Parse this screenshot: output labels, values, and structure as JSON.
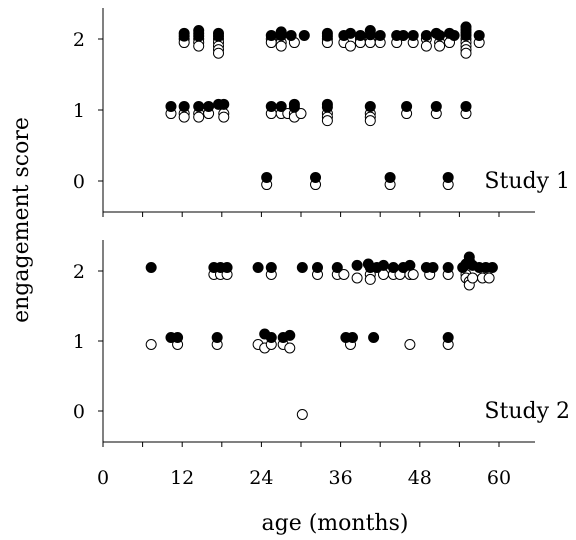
{
  "chart_data": {
    "type": "scatter",
    "xlabel": "age (months)",
    "ylabel": "engagement score",
    "xlim": [
      0,
      66
    ],
    "x_ticks": [
      0,
      12,
      24,
      36,
      48,
      60
    ],
    "x_minor_ticks": [
      6,
      18,
      30,
      42,
      54
    ],
    "y_ticks": [
      0,
      1,
      2
    ],
    "ylim": [
      -0.45,
      2.45
    ],
    "grid": false,
    "colors": {
      "open": "#ffffff",
      "filled": "#000000",
      "stroke": "#000000"
    },
    "panels": [
      {
        "label": "Study 1",
        "series": [
          {
            "marker": "open",
            "values": [
              [
                12.3,
                2
              ],
              [
                12.3,
                1.95
              ],
              [
                14.5,
                2
              ],
              [
                14.5,
                1.95
              ],
              [
                14.5,
                1.9
              ],
              [
                17.5,
                2
              ],
              [
                17.5,
                1.95
              ],
              [
                17.5,
                1.9
              ],
              [
                17.5,
                1.85
              ],
              [
                17.5,
                1.8
              ],
              [
                25.5,
                2
              ],
              [
                25.5,
                1.95
              ],
              [
                27,
                1.95
              ],
              [
                27,
                1.9
              ],
              [
                29,
                1.95
              ],
              [
                34,
                2
              ],
              [
                34,
                1.95
              ],
              [
                36.5,
                1.95
              ],
              [
                37.5,
                1.9
              ],
              [
                39,
                2
              ],
              [
                39,
                1.95
              ],
              [
                40.5,
                2
              ],
              [
                40.5,
                1.95
              ],
              [
                42,
                1.95
              ],
              [
                44.5,
                1.95
              ],
              [
                47,
                1.95
              ],
              [
                49,
                2
              ],
              [
                49,
                1.9
              ],
              [
                51,
                1.95
              ],
              [
                51,
                1.9
              ],
              [
                52.5,
                1.95
              ],
              [
                55,
                2
              ],
              [
                55,
                1.95
              ],
              [
                55,
                1.9
              ],
              [
                55,
                1.85
              ],
              [
                55,
                1.8
              ],
              [
                57,
                1.95
              ],
              [
                10.3,
                0.95
              ],
              [
                12.3,
                0.95
              ],
              [
                12.3,
                0.9
              ],
              [
                14.5,
                0.95
              ],
              [
                14.5,
                0.9
              ],
              [
                16,
                0.95
              ],
              [
                18.3,
                0.95
              ],
              [
                18.3,
                0.9
              ],
              [
                25.5,
                0.95
              ],
              [
                27,
                0.95
              ],
              [
                28,
                0.95
              ],
              [
                29,
                0.95
              ],
              [
                29,
                0.9
              ],
              [
                30,
                0.95
              ],
              [
                34,
                0.95
              ],
              [
                34,
                0.9
              ],
              [
                34,
                0.85
              ],
              [
                40.5,
                0.95
              ],
              [
                40.5,
                0.9
              ],
              [
                40.5,
                0.85
              ],
              [
                46,
                0.95
              ],
              [
                50.5,
                0.95
              ],
              [
                55,
                0.95
              ],
              [
                24.8,
                -0.05
              ],
              [
                32.2,
                -0.05
              ],
              [
                43.5,
                -0.05
              ],
              [
                52.3,
                -0.05
              ]
            ]
          },
          {
            "marker": "filled",
            "values": [
              [
                12.3,
                2.08
              ],
              [
                12.3,
                2.04
              ],
              [
                14.5,
                2.12
              ],
              [
                14.5,
                2.08
              ],
              [
                14.5,
                2.04
              ],
              [
                17.5,
                2.08
              ],
              [
                17.5,
                2.04
              ],
              [
                25.5,
                2.05
              ],
              [
                27,
                2.1
              ],
              [
                27,
                2.05
              ],
              [
                28.5,
                2.05
              ],
              [
                30.5,
                2.05
              ],
              [
                34,
                2.08
              ],
              [
                34,
                2.04
              ],
              [
                36.5,
                2.05
              ],
              [
                37.5,
                2.08
              ],
              [
                39,
                2.05
              ],
              [
                40.5,
                2.12
              ],
              [
                40.5,
                2.06
              ],
              [
                42,
                2.05
              ],
              [
                44.5,
                2.05
              ],
              [
                45.5,
                2.05
              ],
              [
                47,
                2.05
              ],
              [
                49,
                2.05
              ],
              [
                50.5,
                2.08
              ],
              [
                51,
                2.05
              ],
              [
                52.5,
                2.08
              ],
              [
                53.2,
                2.05
              ],
              [
                55,
                2.17
              ],
              [
                55,
                2.13
              ],
              [
                55,
                2.09
              ],
              [
                55,
                2.05
              ],
              [
                57,
                2.05
              ],
              [
                10.3,
                1.05
              ],
              [
                12.3,
                1.05
              ],
              [
                14.5,
                1.05
              ],
              [
                16,
                1.05
              ],
              [
                17.5,
                1.08
              ],
              [
                18.3,
                1.08
              ],
              [
                25.5,
                1.05
              ],
              [
                27,
                1.05
              ],
              [
                29,
                1.08
              ],
              [
                29,
                1.04
              ],
              [
                34,
                1.08
              ],
              [
                34,
                1.04
              ],
              [
                40.5,
                1.05
              ],
              [
                46,
                1.05
              ],
              [
                50.5,
                1.05
              ],
              [
                55,
                1.05
              ],
              [
                24.8,
                0.05
              ],
              [
                32.2,
                0.05
              ],
              [
                43.5,
                0.05
              ],
              [
                52.3,
                0.05
              ]
            ]
          }
        ]
      },
      {
        "label": "Study 2",
        "series": [
          {
            "marker": "open",
            "values": [
              [
                16.8,
                1.95
              ],
              [
                17.8,
                1.95
              ],
              [
                18.8,
                1.95
              ],
              [
                25.5,
                1.95
              ],
              [
                32.5,
                1.95
              ],
              [
                35.5,
                1.95
              ],
              [
                36.5,
                1.95
              ],
              [
                38.5,
                1.9
              ],
              [
                40.5,
                1.95
              ],
              [
                40.5,
                1.88
              ],
              [
                42.5,
                1.95
              ],
              [
                44,
                1.95
              ],
              [
                45,
                1.95
              ],
              [
                46.5,
                1.95
              ],
              [
                47,
                1.95
              ],
              [
                49.5,
                1.95
              ],
              [
                52.3,
                1.95
              ],
              [
                55,
                1.95
              ],
              [
                55,
                1.9
              ],
              [
                55.5,
                1.85
              ],
              [
                55.5,
                1.8
              ],
              [
                56,
                1.9
              ],
              [
                57.5,
                1.9
              ],
              [
                58.5,
                1.9
              ],
              [
                7.3,
                0.95
              ],
              [
                11.3,
                0.95
              ],
              [
                17.3,
                0.95
              ],
              [
                23.5,
                0.95
              ],
              [
                24.5,
                0.9
              ],
              [
                25.5,
                0.95
              ],
              [
                27.3,
                0.95
              ],
              [
                28.3,
                0.9
              ],
              [
                37.5,
                0.95
              ],
              [
                46.5,
                0.95
              ],
              [
                52.3,
                0.95
              ],
              [
                30.2,
                -0.05
              ]
            ]
          },
          {
            "marker": "filled",
            "values": [
              [
                7.3,
                2.05
              ],
              [
                16.8,
                2.05
              ],
              [
                17.8,
                2.05
              ],
              [
                18.8,
                2.05
              ],
              [
                23.5,
                2.05
              ],
              [
                25.5,
                2.05
              ],
              [
                30.2,
                2.05
              ],
              [
                32.5,
                2.05
              ],
              [
                35.5,
                2.05
              ],
              [
                38.5,
                2.08
              ],
              [
                40.2,
                2.1
              ],
              [
                40.5,
                2.05
              ],
              [
                41.5,
                2.05
              ],
              [
                42.5,
                2.08
              ],
              [
                44,
                2.05
              ],
              [
                45.5,
                2.05
              ],
              [
                46.5,
                2.08
              ],
              [
                49,
                2.05
              ],
              [
                50,
                2.05
              ],
              [
                52.3,
                2.05
              ],
              [
                54.5,
                2.05
              ],
              [
                55,
                2.1
              ],
              [
                55.5,
                2.15
              ],
              [
                55.5,
                2.2
              ],
              [
                56,
                2.08
              ],
              [
                57,
                2.05
              ],
              [
                58,
                2.05
              ],
              [
                59,
                2.05
              ],
              [
                10.3,
                1.05
              ],
              [
                11.3,
                1.05
              ],
              [
                17.3,
                1.05
              ],
              [
                24.5,
                1.1
              ],
              [
                25.5,
                1.05
              ],
              [
                27.3,
                1.05
              ],
              [
                28.3,
                1.08
              ],
              [
                36.8,
                1.05
              ],
              [
                37.8,
                1.05
              ],
              [
                41,
                1.05
              ],
              [
                52.3,
                1.05
              ]
            ]
          }
        ]
      }
    ]
  }
}
